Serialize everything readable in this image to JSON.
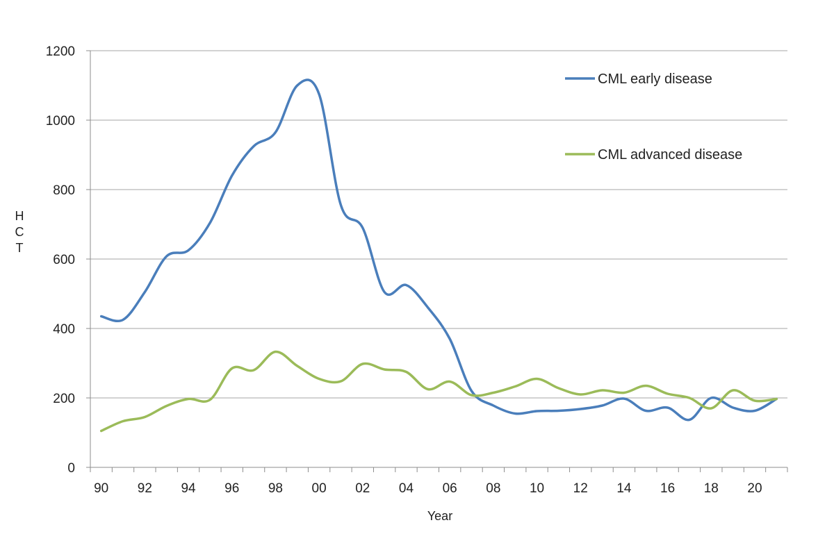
{
  "chart_data": {
    "type": "line",
    "title": "",
    "xlabel": "Year",
    "ylabel": "HCT",
    "ylim": [
      0,
      1200
    ],
    "y_ticks": [
      0,
      200,
      400,
      600,
      800,
      1000,
      1200
    ],
    "grid": "horizontal",
    "legend_position": "top-right",
    "x": [
      "90",
      "91",
      "92",
      "93",
      "94",
      "95",
      "96",
      "97",
      "98",
      "99",
      "00",
      "01",
      "02",
      "03",
      "04",
      "05",
      "06",
      "07",
      "08",
      "09",
      "10",
      "11",
      "12",
      "13",
      "14",
      "15",
      "16",
      "17",
      "18",
      "19",
      "20",
      "21"
    ],
    "x_tick_labels": [
      "90",
      "92",
      "94",
      "96",
      "98",
      "00",
      "02",
      "04",
      "06",
      "08",
      "10",
      "12",
      "14",
      "16",
      "18",
      "20"
    ],
    "series": [
      {
        "name": "CML early disease",
        "color": "#4a7ebb",
        "values": [
          435,
          425,
          505,
          608,
          625,
          705,
          840,
          925,
          965,
          1100,
          1075,
          755,
          690,
          505,
          525,
          460,
          370,
          220,
          178,
          155,
          162,
          163,
          168,
          178,
          198,
          163,
          172,
          137,
          200,
          172,
          163,
          197
        ]
      },
      {
        "name": "CML advanced disease",
        "color": "#9bbb59",
        "values": [
          105,
          133,
          145,
          177,
          197,
          195,
          285,
          280,
          333,
          292,
          255,
          248,
          298,
          282,
          275,
          225,
          247,
          208,
          215,
          233,
          255,
          228,
          210,
          222,
          215,
          235,
          212,
          200,
          170,
          222,
          192,
          197
        ]
      }
    ]
  }
}
